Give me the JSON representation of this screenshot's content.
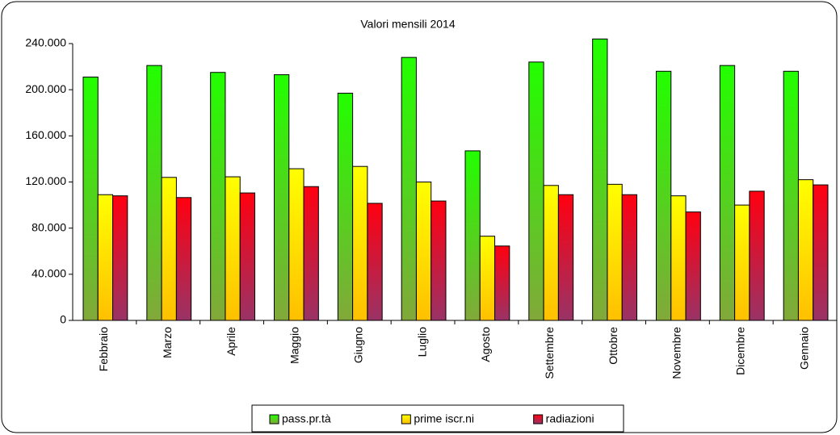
{
  "chart_data": {
    "type": "bar",
    "title": "Valori mensili 2014",
    "categories": [
      "Febbraio",
      "Marzo",
      "Aprile",
      "Maggio",
      "Giugno",
      "Luglio",
      "Agosto",
      "Settembre",
      "Ottobre",
      "Novembre",
      "Dicembre",
      "Gennaio"
    ],
    "series": [
      {
        "name": "pass.pr.tà",
        "color": "#22ff00",
        "color_bottom": "#82a83a",
        "values": [
          211000,
          221000,
          215000,
          213000,
          197000,
          228000,
          147000,
          224000,
          244000,
          216000,
          221000,
          216000
        ]
      },
      {
        "name": "prime iscr.ni",
        "color": "#ffff00",
        "color_bottom": "#ffc000",
        "values": [
          109000,
          124000,
          124500,
          131500,
          133500,
          120000,
          73000,
          117000,
          118000,
          108000,
          100000,
          122000
        ]
      },
      {
        "name": "radiazioni",
        "color": "#ff0010",
        "color_bottom": "#993366",
        "values": [
          108000,
          106500,
          110500,
          116000,
          101500,
          103500,
          64500,
          109000,
          109000,
          94000,
          112000,
          117500
        ]
      }
    ],
    "ylim": [
      0,
      240000
    ],
    "yticks": [
      0,
      {
        "value": 40000,
        "label": "40.000"
      },
      {
        "value": 80000,
        "label": "80.000"
      },
      {
        "value": 120000,
        "label": "120.000"
      },
      {
        "value": 160000,
        "label": "160.000"
      },
      {
        "value": 200000,
        "label": "200.000"
      },
      {
        "value": 240000,
        "label": "240.000"
      }
    ],
    "legend": "bottom"
  }
}
